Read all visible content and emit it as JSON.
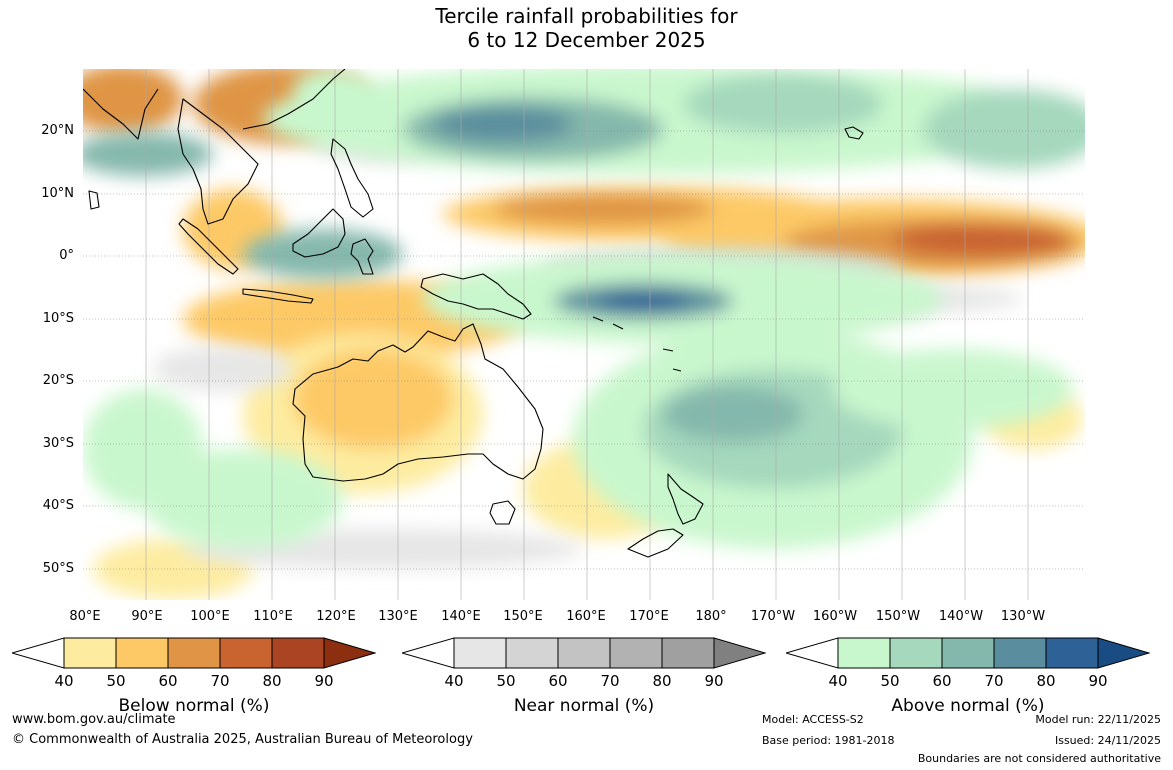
{
  "title": {
    "line1": "Tercile rainfall probabilities for",
    "line2": "6 to 12 December 2025"
  },
  "map": {
    "lat_labels": [
      "20°N",
      "10°N",
      "0°",
      "10°S",
      "20°S",
      "30°S",
      "40°S",
      "50°S"
    ],
    "lon_labels": [
      "80°E",
      "90°E",
      "100°E",
      "110°E",
      "120°E",
      "130°E",
      "140°E",
      "150°E",
      "160°E",
      "170°E",
      "180°",
      "170°W",
      "160°W",
      "150°W",
      "140°W",
      "130°W"
    ]
  },
  "colorbars": [
    {
      "label": "Below normal (%)",
      "ticks": [
        "40",
        "50",
        "60",
        "70",
        "80",
        "90"
      ],
      "colors": [
        "#fdeca0",
        "#fdc966",
        "#df9545",
        "#c96430",
        "#ab4422",
        "#8c2e10"
      ]
    },
    {
      "label": "Near normal (%)",
      "ticks": [
        "40",
        "50",
        "60",
        "70",
        "80",
        "90"
      ],
      "colors": [
        "#e6e6e6",
        "#d4d4d4",
        "#c3c3c3",
        "#b2b2b2",
        "#a0a0a0",
        "#808080"
      ]
    },
    {
      "label": "Above normal (%)",
      "ticks": [
        "40",
        "50",
        "60",
        "70",
        "80",
        "90"
      ],
      "colors": [
        "#c9f7cd",
        "#a5d8bd",
        "#85b8ac",
        "#5a8e9e",
        "#2e6196",
        "#184c82"
      ]
    }
  ],
  "footer": {
    "url": "www.bom.gov.au/climate",
    "copyright": "© Commonwealth of Australia 2025, Australian Bureau of Meteorology",
    "model": "Model: ACCESS-S2",
    "base_period": "Base period: 1981-2018",
    "model_run": "Model run: 22/11/2025",
    "issued": "Issued: 24/11/2025",
    "disclaimer": "Boundaries are not considered authoritative"
  }
}
